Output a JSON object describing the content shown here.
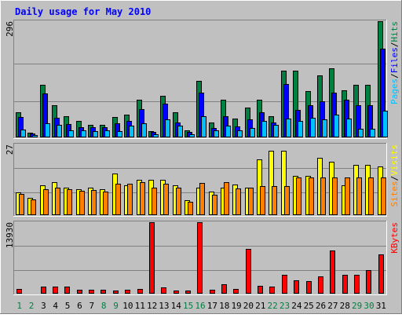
{
  "chart_data": {
    "type": "bar",
    "title": "Daily usage for May 2010",
    "categories": [
      "1",
      "2",
      "3",
      "4",
      "5",
      "6",
      "7",
      "8",
      "9",
      "10",
      "11",
      "12",
      "13",
      "14",
      "15",
      "16",
      "17",
      "18",
      "19",
      "20",
      "21",
      "22",
      "23",
      "24",
      "25",
      "26",
      "27",
      "28",
      "29",
      "30",
      "31"
    ],
    "weekend_days": [
      "1",
      "2",
      "8",
      "9",
      "15",
      "16",
      "22",
      "23",
      "29",
      "30"
    ],
    "colors": {
      "background": "#c0c0c0",
      "title": "#0000ff",
      "hits": "#008040",
      "files": "#0000ff",
      "pages": "#00c0ff",
      "visits": "#ffff00",
      "sites": "#ff8000",
      "kbytes": "#ff0000",
      "weekday_label": "#000000",
      "weekend_label": "#008040"
    },
    "panels": [
      {
        "id": "hits-files-pages",
        "max_label": "296",
        "ylim": [
          0,
          296
        ],
        "legend": [
          {
            "text": "Pages",
            "color": "#00c0ff"
          },
          {
            "text": "/",
            "color": "#000000"
          },
          {
            "text": "Files",
            "color": "#0000ff"
          },
          {
            "text": "/",
            "color": "#000000"
          },
          {
            "text": "Hits",
            "color": "#008040"
          }
        ],
        "series": [
          {
            "name": "Hits",
            "color": "#008040",
            "values": [
              63,
              12,
              133,
              81,
              53,
              41,
              32,
              32,
              52,
              57,
              96,
              16,
              105,
              64,
              18,
              143,
              38,
              96,
              48,
              76,
              96,
              54,
              170,
              170,
              118,
              158,
              175,
              119,
              133,
              133,
              296
            ]
          },
          {
            "name": "Files",
            "color": "#0000ff",
            "values": [
              51,
              10,
              111,
              49,
              33,
              25,
              25,
              26,
              35,
              41,
              72,
              14,
              85,
              37,
              13,
              114,
              24,
              54,
              28,
              46,
              63,
              38,
              135,
              69,
              81,
              92,
              115,
              96,
              81,
              81,
              225
            ]
          },
          {
            "name": "Pages",
            "color": "#00c0ff",
            "values": [
              20,
              6,
              35,
              32,
              18,
              18,
              16,
              18,
              16,
              30,
              36,
              7,
              46,
              30,
              8,
              54,
              18,
              30,
              17,
              23,
              43,
              32,
              47,
              42,
              50,
              46,
              58,
              48,
              22,
              22,
              67
            ]
          }
        ]
      },
      {
        "id": "visits-sites",
        "max_label": "27",
        "ylim": [
          0,
          27
        ],
        "legend": [
          {
            "text": "Sites",
            "color": "#ff8000"
          },
          {
            "text": "/",
            "color": "#000000"
          },
          {
            "text": "Visits",
            "color": "#ffff00"
          }
        ],
        "series": [
          {
            "name": "Visits",
            "color": "#ffff00",
            "values": [
              8.6,
              6.7,
              11.4,
              12.5,
              10.5,
              10,
              10.5,
              10,
              15.8,
              11.4,
              13.4,
              13.4,
              13.4,
              11.4,
              5.7,
              10.5,
              9.1,
              10.5,
              11.6,
              10.5,
              21.2,
              24.5,
              24.5,
              14.9,
              14.9,
              21.8,
              20.3,
              11.4,
              19.3,
              19.3,
              18.6
            ]
          },
          {
            "name": "Sites",
            "color": "#ff8000",
            "values": [
              8.2,
              5.9,
              10,
              10.5,
              10,
              9.2,
              9.5,
              8.9,
              12,
              12,
              12.5,
              10.5,
              12,
              10.5,
              5.2,
              12.3,
              7.8,
              12.5,
              10.3,
              10.5,
              11.1,
              11.1,
              11.1,
              14.3,
              14.3,
              14.3,
              14.3,
              14.3,
              14.3,
              14.3,
              14.3
            ]
          }
        ]
      },
      {
        "id": "kbytes",
        "max_label": "13930",
        "ylim": [
          0,
          13930
        ],
        "legend": [
          {
            "text": "KBytes",
            "color": "#ff0000"
          }
        ],
        "series": [
          {
            "name": "KBytes",
            "color": "#ff0000",
            "values": [
              900,
              200,
              1450,
              1400,
              1400,
              700,
              700,
              800,
              600,
              800,
              850,
              13930,
              1150,
              650,
              650,
              13930,
              700,
              1850,
              900,
              8800,
              1500,
              1400,
              3600,
              2600,
              2500,
              3350,
              8400,
              3700,
              3700,
              4600,
              7600
            ]
          }
        ]
      }
    ]
  }
}
